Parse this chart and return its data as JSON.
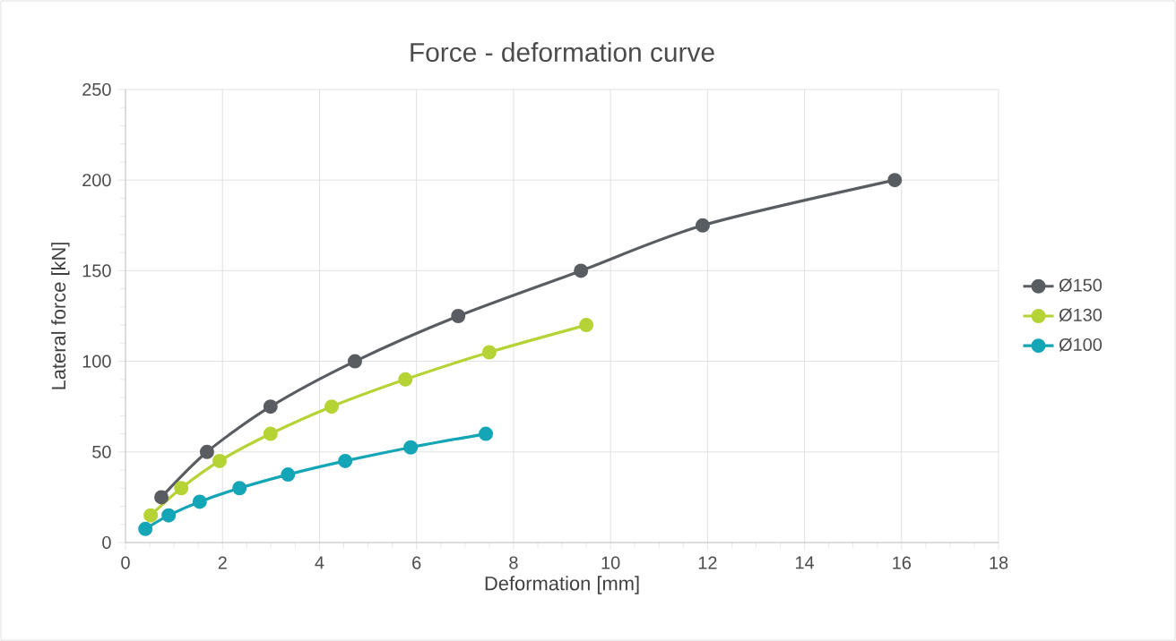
{
  "chart_data": {
    "type": "line",
    "title": "Force - deformation curve",
    "xlabel": "Deformation [mm]",
    "ylabel": "Lateral force [kN]",
    "xlim": [
      0,
      18
    ],
    "xticks": [
      0,
      2,
      4,
      6,
      8,
      10,
      12,
      14,
      16,
      18
    ],
    "ylim": [
      0,
      250
    ],
    "yticks": [
      0,
      50,
      100,
      150,
      200,
      250
    ],
    "grid": true,
    "legend": "right",
    "marker": "circle",
    "line_style": "solid",
    "series": [
      {
        "name": "Ø150",
        "color": "#595d62",
        "x": [
          0.74,
          1.68,
          2.99,
          4.73,
          6.86,
          9.39,
          11.9,
          15.86
        ],
        "values": [
          25,
          50,
          75,
          100,
          125,
          150,
          175,
          200
        ]
      },
      {
        "name": "Ø130",
        "color": "#b5d335",
        "x": [
          0.52,
          1.15,
          1.94,
          2.99,
          4.25,
          5.77,
          7.5,
          9.5
        ],
        "values": [
          15,
          30,
          45,
          60,
          75,
          90,
          105,
          120
        ]
      },
      {
        "name": "Ø100",
        "color": "#14a6b6",
        "x": [
          0.41,
          0.89,
          1.53,
          2.35,
          3.35,
          4.53,
          5.88,
          7.43
        ],
        "values": [
          7.5,
          15,
          22.5,
          30,
          37.5,
          45,
          52.5,
          60
        ]
      }
    ]
  }
}
